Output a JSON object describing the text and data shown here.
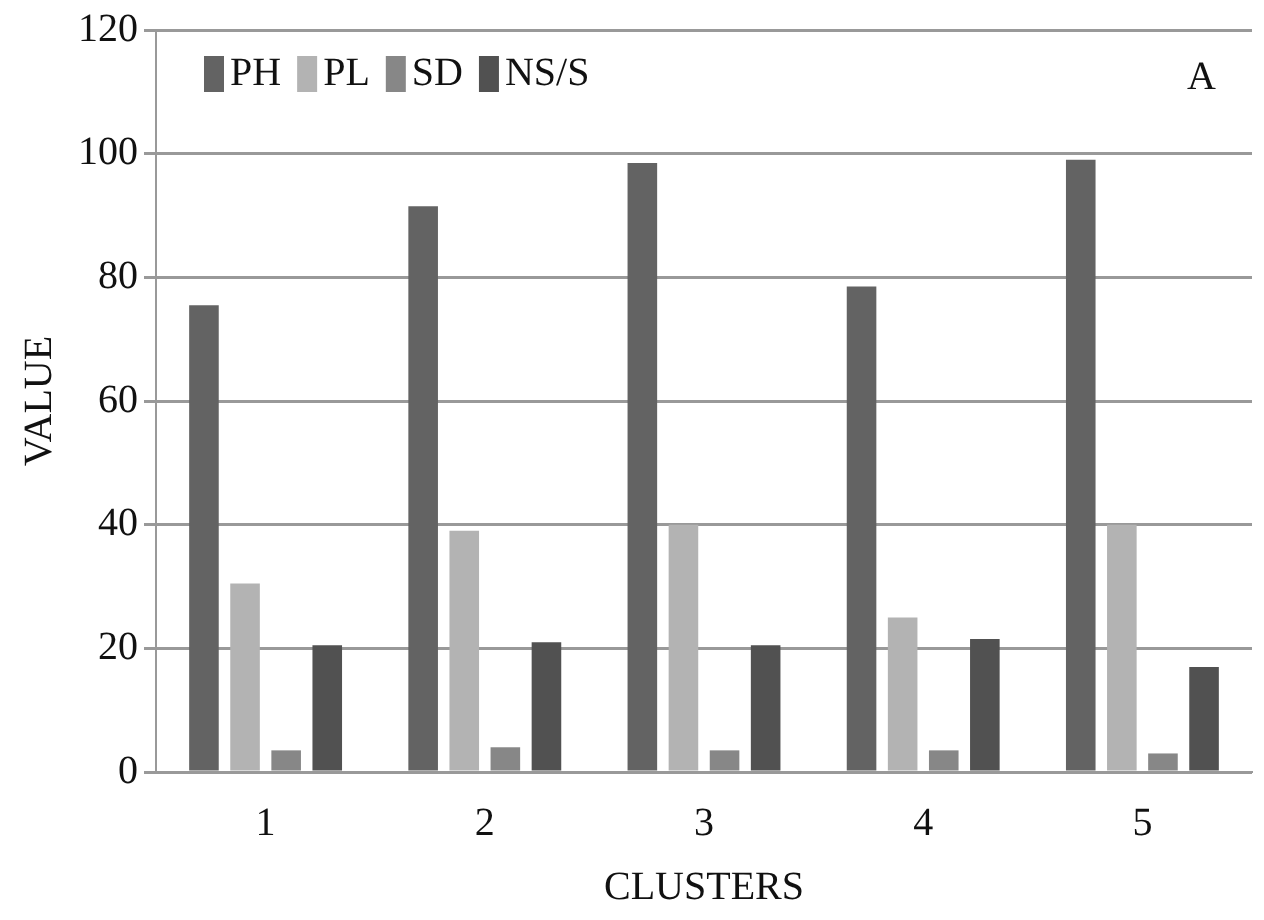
{
  "chart_data": {
    "type": "bar",
    "xlabel": "CLUSTERS",
    "ylabel": "VALUE",
    "categories": [
      "1",
      "2",
      "3",
      "4",
      "5"
    ],
    "series": [
      {
        "name": "PH",
        "color": "#636363",
        "values": [
          75.5,
          91.5,
          98.5,
          78.5,
          99
        ]
      },
      {
        "name": "PL",
        "color": "#b3b3b3",
        "values": [
          30.5,
          39,
          40,
          25,
          40
        ]
      },
      {
        "name": "SD",
        "color": "#878787",
        "values": [
          3.5,
          4,
          3.5,
          3.5,
          3
        ]
      },
      {
        "name": "NS/S",
        "color": "#515151",
        "values": [
          20.5,
          21,
          20.5,
          21.5,
          17
        ]
      }
    ],
    "ylim": [
      0,
      120
    ],
    "yticks": [
      0,
      20,
      40,
      60,
      80,
      100,
      120
    ],
    "grid": "y",
    "legend": "top left",
    "annotations": [
      "A"
    ]
  }
}
